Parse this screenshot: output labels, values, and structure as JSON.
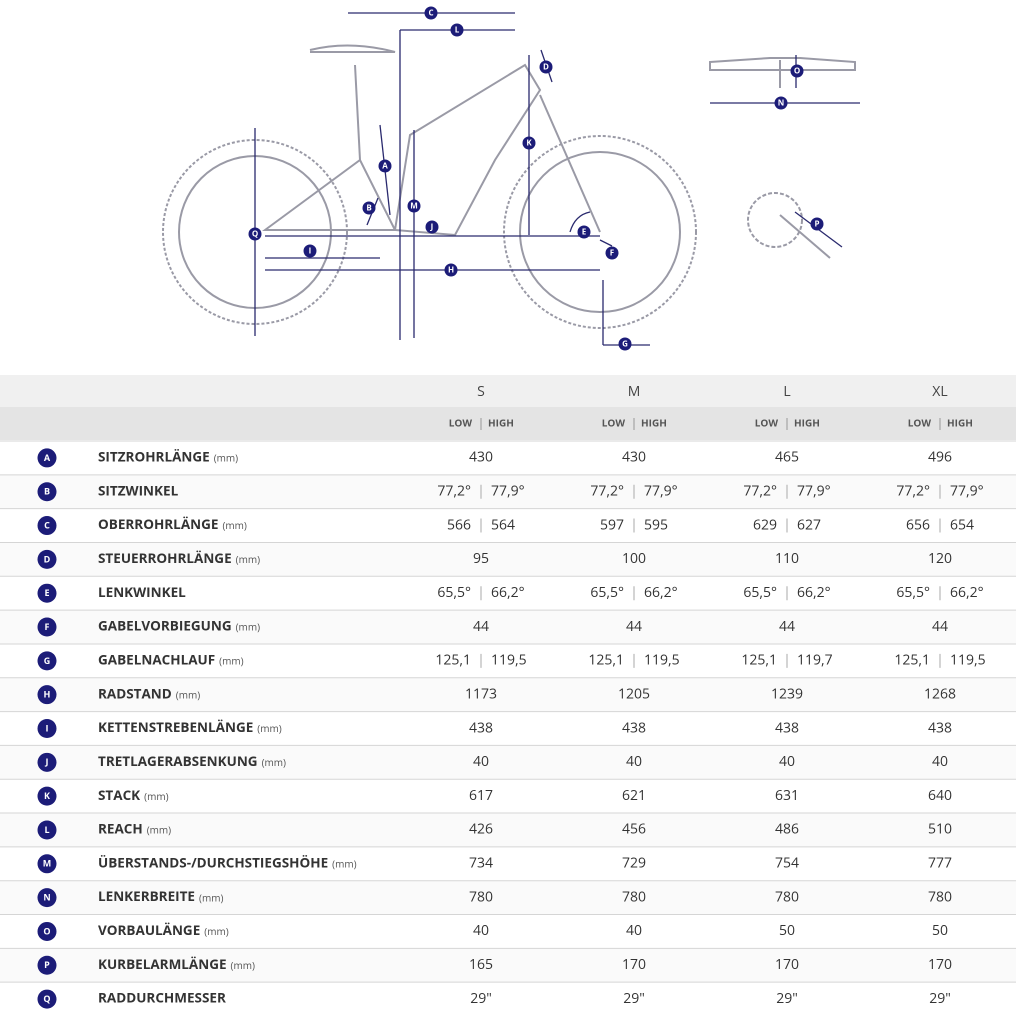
{
  "diagram": {
    "labels": [
      "C",
      "L",
      "D",
      "O",
      "N",
      "K",
      "A",
      "M",
      "B",
      "J",
      "Q",
      "I",
      "H",
      "E",
      "F",
      "P",
      "G"
    ]
  },
  "table": {
    "sizes": [
      "S",
      "M",
      "L",
      "XL"
    ],
    "low": "LOW",
    "high": "HIGH",
    "rows": [
      {
        "key": "A",
        "name": "SITZROHRLÄNGE",
        "unit": "(mm)",
        "values": [
          "430",
          "430",
          "465",
          "496"
        ]
      },
      {
        "key": "B",
        "name": "SITZWINKEL",
        "values": [
          [
            "77,2°",
            "77,9°"
          ],
          [
            "77,2°",
            "77,9°"
          ],
          [
            "77,2°",
            "77,9°"
          ],
          [
            "77,2°",
            "77,9°"
          ]
        ]
      },
      {
        "key": "C",
        "name": "OBERROHRLÄNGE",
        "unit": "(mm)",
        "values": [
          [
            "566",
            "564"
          ],
          [
            "597",
            "595"
          ],
          [
            "629",
            "627"
          ],
          [
            "656",
            "654"
          ]
        ]
      },
      {
        "key": "D",
        "name": "STEUERROHRLÄNGE",
        "unit": "(mm)",
        "values": [
          "95",
          "100",
          "110",
          "120"
        ]
      },
      {
        "key": "E",
        "name": "LENKWINKEL",
        "values": [
          [
            "65,5°",
            "66,2°"
          ],
          [
            "65,5°",
            "66,2°"
          ],
          [
            "65,5°",
            "66,2°"
          ],
          [
            "65,5°",
            "66,2°"
          ]
        ]
      },
      {
        "key": "F",
        "name": "GABELVORBIEGUNG",
        "unit": "(mm)",
        "values": [
          "44",
          "44",
          "44",
          "44"
        ]
      },
      {
        "key": "G",
        "name": "GABELNACHLAUF",
        "unit": "(mm)",
        "values": [
          [
            "125,1",
            "119,5"
          ],
          [
            "125,1",
            "119,5"
          ],
          [
            "125,1",
            "119,7"
          ],
          [
            "125,1",
            "119,5"
          ]
        ]
      },
      {
        "key": "H",
        "name": "RADSTAND",
        "unit": "(mm)",
        "values": [
          "1173",
          "1205",
          "1239",
          "1268"
        ]
      },
      {
        "key": "I",
        "name": "KETTENSTREBENLÄNGE",
        "unit": "(mm)",
        "values": [
          "438",
          "438",
          "438",
          "438"
        ]
      },
      {
        "key": "J",
        "name": "TRETLAGERABSENKUNG",
        "unit": "(mm)",
        "values": [
          "40",
          "40",
          "40",
          "40"
        ]
      },
      {
        "key": "K",
        "name": "STACK",
        "unit": "(mm)",
        "values": [
          "617",
          "621",
          "631",
          "640"
        ]
      },
      {
        "key": "L",
        "name": "REACH",
        "unit": "(mm)",
        "values": [
          "426",
          "456",
          "486",
          "510"
        ]
      },
      {
        "key": "M",
        "name": "ÜBERSTANDS-/DURCHSTIEGSHÖHE",
        "unit": "(mm)",
        "values": [
          "734",
          "729",
          "754",
          "777"
        ]
      },
      {
        "key": "N",
        "name": "LENKERBREITE",
        "unit": "(mm)",
        "values": [
          "780",
          "780",
          "780",
          "780"
        ]
      },
      {
        "key": "O",
        "name": "VORBAULÄNGE",
        "unit": "(mm)",
        "values": [
          "40",
          "40",
          "50",
          "50"
        ]
      },
      {
        "key": "P",
        "name": "KURBELARMLÄNGE",
        "unit": "(mm)",
        "values": [
          "165",
          "170",
          "170",
          "170"
        ]
      },
      {
        "key": "Q",
        "name": "RADDURCHMESSER",
        "values": [
          "29\"",
          "29\"",
          "29\"",
          "29\""
        ]
      }
    ]
  }
}
